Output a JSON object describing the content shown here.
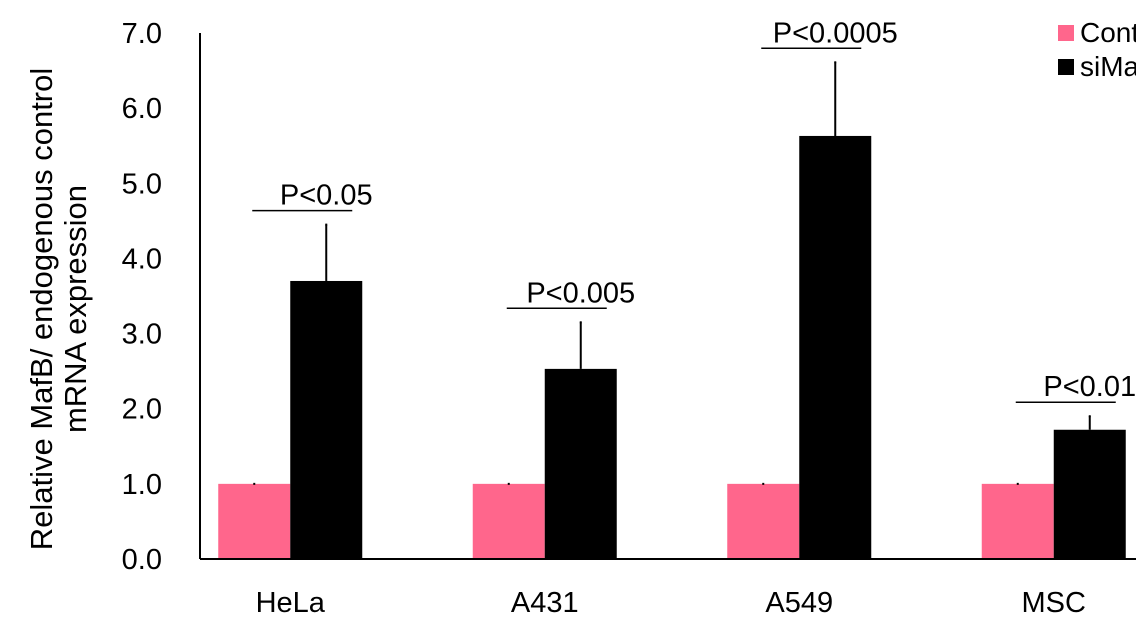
{
  "chart_data": {
    "type": "bar",
    "categories": [
      "HeLa",
      "A431",
      "A549",
      "MSC"
    ],
    "series": [
      {
        "name": "Control",
        "color": "#ff668c",
        "values": [
          1.0,
          1.0,
          1.0,
          1.0
        ],
        "errors": [
          0.0,
          0.0,
          0.0,
          0.0
        ]
      },
      {
        "name": "siMafB",
        "color": "#000000",
        "values": [
          3.7,
          2.53,
          5.63,
          1.72
        ],
        "errors": [
          0.75,
          0.62,
          0.98,
          0.18
        ]
      }
    ],
    "ylabel_lines": [
      "Relative MafB/ endogenous control",
      "mRNA expression"
    ],
    "yticks": [
      "0.0",
      "1.0",
      "2.0",
      "3.0",
      "4.0",
      "5.0",
      "6.0",
      "7.0"
    ],
    "ylim": [
      0,
      7
    ],
    "grid": false,
    "annotations": [
      "P<0.05",
      "P<0.005",
      "P<0.0005",
      "P<0.01"
    ],
    "legend_position": "top-right"
  }
}
